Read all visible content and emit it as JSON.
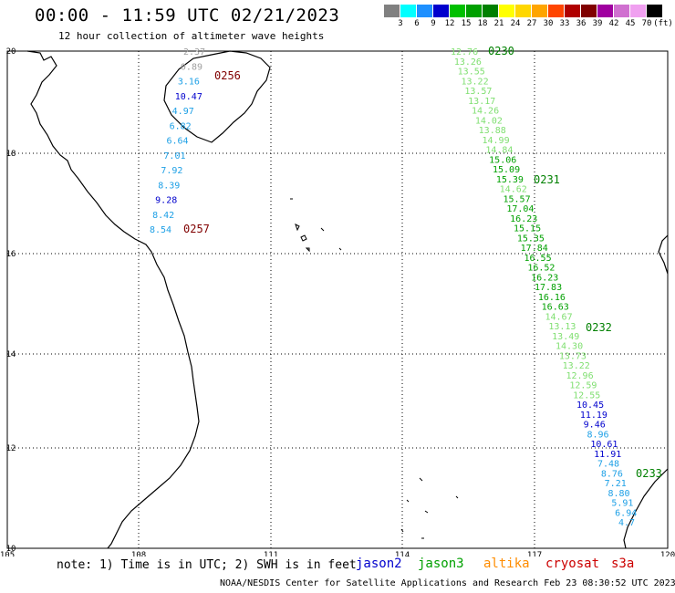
{
  "title": "00:00 - 11:59 UTC 02/21/2023",
  "subtitle": "12 hour collection of altimeter wave heights",
  "legend": {
    "unit": "(ft)",
    "labels": [
      "3",
      "6",
      "9",
      "12",
      "15",
      "18",
      "21",
      "24",
      "27",
      "30",
      "33",
      "36",
      "39",
      "42",
      "45",
      "70"
    ],
    "colors": [
      "#808080",
      "#00ffff",
      "#1e90ff",
      "#0000cd",
      "#00c000",
      "#00a000",
      "#008000",
      "#ffff00",
      "#ffd700",
      "#ffa500",
      "#ff4500",
      "#b00000",
      "#800000",
      "#a000a0",
      "#d070d0",
      "#f0a0f0",
      "#000000"
    ]
  },
  "map": {
    "lon_ticks": [
      "105",
      "108",
      "111",
      "114",
      "117",
      "120"
    ],
    "lat_ticks": [
      "20",
      "18",
      "16",
      "14",
      "12",
      "10"
    ],
    "track_colors": {
      "jason2": "#0000cd",
      "jason3": "#00a000",
      "jason3_light": "#7fdf70",
      "altika": "#ff8c00",
      "cryosat": "#b00000",
      "s3a": "#b00000",
      "cyan": "#1ea0e6"
    }
  },
  "track_west": {
    "readings": [
      {
        "value": "2.37",
        "color": "#a0a0a0"
      },
      {
        "value": "0.89",
        "color": "#a0a0a0"
      },
      {
        "value": "3.16",
        "color": "#1ea0e6"
      },
      {
        "value": "10.47",
        "color": "#0000cd"
      },
      {
        "value": "4.97",
        "color": "#1ea0e6"
      },
      {
        "value": "6.82",
        "color": "#1ea0e6"
      },
      {
        "value": "6.64",
        "color": "#1ea0e6"
      },
      {
        "value": "7.01",
        "color": "#1ea0e6"
      },
      {
        "value": "7.92",
        "color": "#1ea0e6"
      },
      {
        "value": "8.39",
        "color": "#1ea0e6"
      },
      {
        "value": "9.28",
        "color": "#0000cd"
      },
      {
        "value": "8.42",
        "color": "#1ea0e6"
      },
      {
        "value": "8.54",
        "color": "#1ea0e6"
      }
    ],
    "times": [
      {
        "value": "0256",
        "color": "#800000"
      },
      {
        "value": "0257",
        "color": "#800000"
      }
    ]
  },
  "track_east": {
    "readings": [
      {
        "value": "12.76",
        "color": "#7fdf70"
      },
      {
        "value": "13.26",
        "color": "#7fdf70"
      },
      {
        "value": "13.55",
        "color": "#7fdf70"
      },
      {
        "value": "13.22",
        "color": "#7fdf70"
      },
      {
        "value": "13.57",
        "color": "#7fdf70"
      },
      {
        "value": "13.17",
        "color": "#7fdf70"
      },
      {
        "value": "14.26",
        "color": "#7fdf70"
      },
      {
        "value": "14.02",
        "color": "#7fdf70"
      },
      {
        "value": "13.88",
        "color": "#7fdf70"
      },
      {
        "value": "14.99",
        "color": "#7fdf70"
      },
      {
        "value": "14.84",
        "color": "#7fdf70"
      },
      {
        "value": "15.06",
        "color": "#00a000"
      },
      {
        "value": "15.09",
        "color": "#00a000"
      },
      {
        "value": "15.39",
        "color": "#00a000"
      },
      {
        "value": "14.62",
        "color": "#7fdf70"
      },
      {
        "value": "15.57",
        "color": "#00a000"
      },
      {
        "value": "17.04",
        "color": "#00a000"
      },
      {
        "value": "16.23",
        "color": "#00a000"
      },
      {
        "value": "15.15",
        "color": "#00a000"
      },
      {
        "value": "15.35",
        "color": "#00a000"
      },
      {
        "value": "17.84",
        "color": "#00a000"
      },
      {
        "value": "16.55",
        "color": "#00a000"
      },
      {
        "value": "16.52",
        "color": "#00a000"
      },
      {
        "value": "16.23",
        "color": "#00a000"
      },
      {
        "value": "17.83",
        "color": "#00a000"
      },
      {
        "value": "16.16",
        "color": "#00a000"
      },
      {
        "value": "16.63",
        "color": "#00a000"
      },
      {
        "value": "14.67",
        "color": "#7fdf70"
      },
      {
        "value": "13.13",
        "color": "#7fdf70"
      },
      {
        "value": "13.49",
        "color": "#7fdf70"
      },
      {
        "value": "14.30",
        "color": "#7fdf70"
      },
      {
        "value": "13.73",
        "color": "#7fdf70"
      },
      {
        "value": "13.22",
        "color": "#7fdf70"
      },
      {
        "value": "12.96",
        "color": "#7fdf70"
      },
      {
        "value": "12.59",
        "color": "#7fdf70"
      },
      {
        "value": "12.55",
        "color": "#7fdf70"
      },
      {
        "value": "10.45",
        "color": "#0000cd"
      },
      {
        "value": "11.19",
        "color": "#0000cd"
      },
      {
        "value": "9.46",
        "color": "#0000cd"
      },
      {
        "value": "8.96",
        "color": "#1ea0e6"
      },
      {
        "value": "10.61",
        "color": "#0000cd"
      },
      {
        "value": "11.91",
        "color": "#0000cd"
      },
      {
        "value": "7.48",
        "color": "#1ea0e6"
      },
      {
        "value": "8.76",
        "color": "#1ea0e6"
      },
      {
        "value": "7.21",
        "color": "#1ea0e6"
      },
      {
        "value": "8.80",
        "color": "#1ea0e6"
      },
      {
        "value": "5.91",
        "color": "#1ea0e6"
      },
      {
        "value": "6.94",
        "color": "#1ea0e6"
      },
      {
        "value": "4.7",
        "color": "#1ea0e6"
      }
    ],
    "times": [
      {
        "value": "0230",
        "color": "#008000"
      },
      {
        "value": "0231",
        "color": "#008000"
      },
      {
        "value": "0232",
        "color": "#008000"
      },
      {
        "value": "0233",
        "color": "#008000"
      }
    ]
  },
  "note": "note: 1) Time is in UTC; 2) SWH is in feet",
  "satellites": [
    {
      "name": "jason2",
      "color": "#0000cd"
    },
    {
      "name": "jason3",
      "color": "#00a000"
    },
    {
      "name": "altika",
      "color": "#ff8c00"
    },
    {
      "name": "cryosat",
      "color": "#cc0000"
    },
    {
      "name": "s3a",
      "color": "#cc0000"
    }
  ],
  "footer": "NOAA/NESDIS Center for Satellite Applications and Research    Feb 23 08:30:52 UTC 2023"
}
